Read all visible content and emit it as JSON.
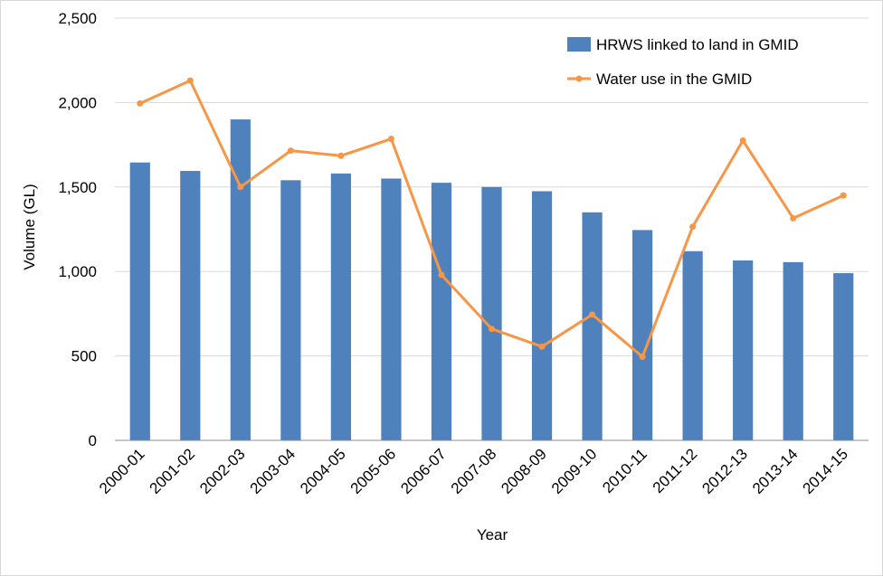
{
  "chart_data": {
    "type": "bar",
    "xlabel": "Year",
    "ylabel": "Volume (GL)",
    "ylim": [
      0,
      2500
    ],
    "yticks": [
      "0",
      "500",
      "1,000",
      "1,500",
      "2,000",
      "2,500"
    ],
    "grid": true,
    "legend_position": "top-right",
    "categories": [
      "2000-01",
      "2001-02",
      "2002-03",
      "2003-04",
      "2004-05",
      "2005-06",
      "2006-07",
      "2007-08",
      "2008-09",
      "2009-10",
      "2010-11",
      "2011-12",
      "2012-13",
      "2013-14",
      "2014-15"
    ],
    "series": [
      {
        "name": "HRWS linked to land in GMID",
        "type": "bar",
        "color": "#4f81bd",
        "values": [
          1645,
          1595,
          1900,
          1540,
          1580,
          1550,
          1525,
          1500,
          1475,
          1350,
          1245,
          1120,
          1065,
          1055,
          990
        ]
      },
      {
        "name": "Water use in the GMID",
        "type": "line",
        "color": "#f79646",
        "values": [
          1995,
          2130,
          1500,
          1715,
          1685,
          1785,
          980,
          660,
          555,
          745,
          495,
          1265,
          1775,
          1315,
          1450
        ]
      }
    ]
  }
}
